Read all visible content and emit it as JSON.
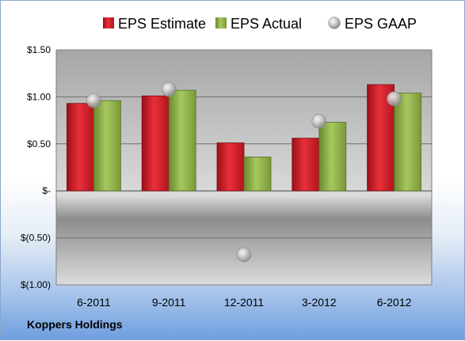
{
  "chart_data": {
    "type": "bar",
    "categories": [
      "6-2011",
      "9-2011",
      "12-2011",
      "3-2012",
      "6-2012"
    ],
    "series": [
      {
        "name": "EPS Estimate",
        "kind": "bar",
        "color": "#d0202c",
        "values": [
          0.93,
          1.01,
          0.51,
          0.56,
          1.13
        ]
      },
      {
        "name": "EPS Actual",
        "kind": "bar",
        "color": "#8fb04a",
        "values": [
          0.96,
          1.07,
          0.36,
          0.73,
          1.04
        ]
      },
      {
        "name": "EPS GAAP",
        "kind": "marker",
        "color": "#b8b8b8",
        "values": [
          0.96,
          1.08,
          -0.68,
          0.74,
          0.98
        ]
      }
    ],
    "yticks": [
      "$1.50",
      "$1.00",
      "$0.50",
      "$-",
      "$(0.50)",
      "$(1.00)"
    ],
    "ytick_values": [
      1.5,
      1.0,
      0.5,
      0,
      -0.5,
      -1.0
    ],
    "ylim": [
      -1.0,
      1.5
    ],
    "grid": true,
    "legend_position": "top"
  },
  "company": "Koppers Holdings"
}
